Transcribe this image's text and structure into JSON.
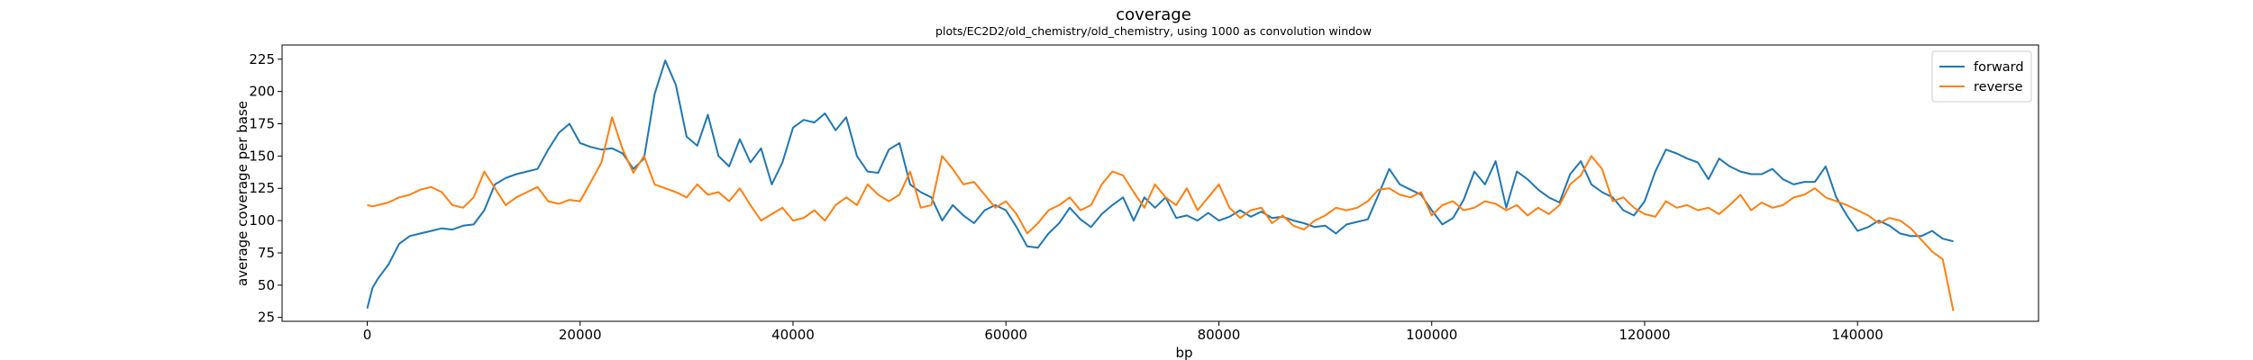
{
  "chart_data": {
    "type": "line",
    "title": "coverage",
    "subtitle": "plots/EC2D2/old_chemistry/old_chemistry, using 1000 as convolution window",
    "xlabel": "bp",
    "ylabel": "average coverage per base",
    "xlim": [
      -8000,
      157000
    ],
    "ylim": [
      22,
      236
    ],
    "xticks": [
      0,
      20000,
      40000,
      60000,
      80000,
      100000,
      120000,
      140000
    ],
    "yticks": [
      25,
      50,
      75,
      100,
      125,
      150,
      175,
      200,
      225
    ],
    "legend_position": "upper-right",
    "series": [
      {
        "name": "forward",
        "color": "#1f77b4",
        "x": [
          0,
          500,
          1000,
          2000,
          3000,
          4000,
          5000,
          6000,
          7000,
          8000,
          9000,
          10000,
          11000,
          12000,
          13000,
          14000,
          15000,
          16000,
          17000,
          18000,
          19000,
          20000,
          21000,
          22000,
          23000,
          24000,
          25000,
          26000,
          27000,
          28000,
          29000,
          30000,
          31000,
          32000,
          33000,
          34000,
          35000,
          36000,
          37000,
          38000,
          39000,
          40000,
          41000,
          42000,
          43000,
          44000,
          45000,
          46000,
          47000,
          48000,
          49000,
          50000,
          51000,
          52000,
          53000,
          54000,
          55000,
          56000,
          57000,
          58000,
          59000,
          60000,
          61000,
          62000,
          63000,
          64000,
          65000,
          66000,
          67000,
          68000,
          69000,
          70000,
          71000,
          72000,
          73000,
          74000,
          75000,
          76000,
          77000,
          78000,
          79000,
          80000,
          81000,
          82000,
          83000,
          84000,
          85000,
          86000,
          87000,
          88000,
          89000,
          90000,
          91000,
          92000,
          93000,
          94000,
          95000,
          96000,
          97000,
          98000,
          99000,
          100000,
          101000,
          102000,
          103000,
          104000,
          105000,
          106000,
          107000,
          108000,
          109000,
          110000,
          111000,
          112000,
          113000,
          114000,
          115000,
          116000,
          117000,
          118000,
          119000,
          120000,
          121000,
          122000,
          123000,
          124000,
          125000,
          126000,
          127000,
          128000,
          129000,
          130000,
          131000,
          132000,
          133000,
          134000,
          135000,
          136000,
          137000,
          138000,
          139000,
          140000,
          141000,
          142000,
          143000,
          144000,
          145000,
          146000,
          147000,
          148000,
          149000
        ],
        "y": [
          32,
          48,
          55,
          66,
          82,
          88,
          90,
          92,
          94,
          93,
          96,
          97,
          108,
          128,
          133,
          136,
          138,
          140,
          155,
          168,
          175,
          160,
          157,
          155,
          156,
          152,
          140,
          148,
          198,
          224,
          205,
          165,
          158,
          182,
          150,
          142,
          163,
          145,
          156,
          128,
          145,
          172,
          178,
          176,
          183,
          170,
          180,
          150,
          138,
          137,
          155,
          160,
          128,
          122,
          118,
          100,
          112,
          104,
          98,
          108,
          112,
          108,
          95,
          80,
          79,
          90,
          98,
          110,
          101,
          95,
          105,
          112,
          118,
          100,
          118,
          110,
          118,
          102,
          104,
          100,
          106,
          100,
          103,
          108,
          103,
          107,
          102,
          103,
          100,
          98,
          95,
          96,
          90,
          97,
          99,
          101,
          120,
          140,
          128,
          124,
          120,
          108,
          97,
          102,
          116,
          138,
          128,
          146,
          110,
          138,
          132,
          124,
          118,
          114,
          136,
          146,
          128,
          122,
          118,
          108,
          104,
          115,
          138,
          155,
          152,
          148,
          145,
          132,
          148,
          142,
          138,
          136,
          136,
          140,
          132,
          128,
          130,
          130,
          142,
          118,
          104,
          92,
          95,
          100,
          96,
          90,
          88,
          88,
          92,
          86,
          84
        ]
      },
      {
        "name": "reverse",
        "color": "#ff7f0e",
        "x": [
          0,
          500,
          1000,
          2000,
          3000,
          4000,
          5000,
          6000,
          7000,
          8000,
          9000,
          10000,
          11000,
          12000,
          13000,
          14000,
          15000,
          16000,
          17000,
          18000,
          19000,
          20000,
          21000,
          22000,
          23000,
          24000,
          25000,
          26000,
          27000,
          28000,
          29000,
          30000,
          31000,
          32000,
          33000,
          34000,
          35000,
          36000,
          37000,
          38000,
          39000,
          40000,
          41000,
          42000,
          43000,
          44000,
          45000,
          46000,
          47000,
          48000,
          49000,
          50000,
          51000,
          52000,
          53000,
          54000,
          55000,
          56000,
          57000,
          58000,
          59000,
          60000,
          61000,
          62000,
          63000,
          64000,
          65000,
          66000,
          67000,
          68000,
          69000,
          70000,
          71000,
          72000,
          73000,
          74000,
          75000,
          76000,
          77000,
          78000,
          79000,
          80000,
          81000,
          82000,
          83000,
          84000,
          85000,
          86000,
          87000,
          88000,
          89000,
          90000,
          91000,
          92000,
          93000,
          94000,
          95000,
          96000,
          97000,
          98000,
          99000,
          100000,
          101000,
          102000,
          103000,
          104000,
          105000,
          106000,
          107000,
          108000,
          109000,
          110000,
          111000,
          112000,
          113000,
          114000,
          115000,
          116000,
          117000,
          118000,
          119000,
          120000,
          121000,
          122000,
          123000,
          124000,
          125000,
          126000,
          127000,
          128000,
          129000,
          130000,
          131000,
          132000,
          133000,
          134000,
          135000,
          136000,
          137000,
          138000,
          139000,
          140000,
          141000,
          142000,
          143000,
          144000,
          145000,
          146000,
          147000,
          148000,
          149000
        ],
        "y": [
          112,
          111,
          112,
          114,
          118,
          120,
          124,
          126,
          122,
          112,
          110,
          118,
          138,
          125,
          112,
          118,
          122,
          126,
          115,
          113,
          116,
          115,
          130,
          145,
          180,
          155,
          137,
          150,
          128,
          125,
          122,
          118,
          128,
          120,
          122,
          115,
          125,
          112,
          100,
          105,
          110,
          100,
          102,
          108,
          100,
          112,
          118,
          112,
          128,
          120,
          115,
          120,
          138,
          110,
          112,
          150,
          140,
          128,
          130,
          120,
          110,
          115,
          105,
          90,
          98,
          108,
          112,
          118,
          108,
          112,
          128,
          138,
          135,
          122,
          110,
          128,
          118,
          112,
          125,
          108,
          118,
          128,
          110,
          102,
          108,
          110,
          98,
          104,
          96,
          93,
          100,
          104,
          110,
          108,
          110,
          115,
          124,
          125,
          120,
          118,
          122,
          104,
          112,
          115,
          108,
          110,
          115,
          113,
          108,
          112,
          104,
          110,
          105,
          112,
          128,
          135,
          150,
          140,
          115,
          118,
          110,
          105,
          103,
          115,
          110,
          112,
          108,
          110,
          105,
          112,
          120,
          108,
          114,
          110,
          112,
          118,
          120,
          125,
          118,
          115,
          112,
          108,
          104,
          98,
          102,
          100,
          94,
          85,
          76,
          70,
          30
        ]
      }
    ]
  }
}
